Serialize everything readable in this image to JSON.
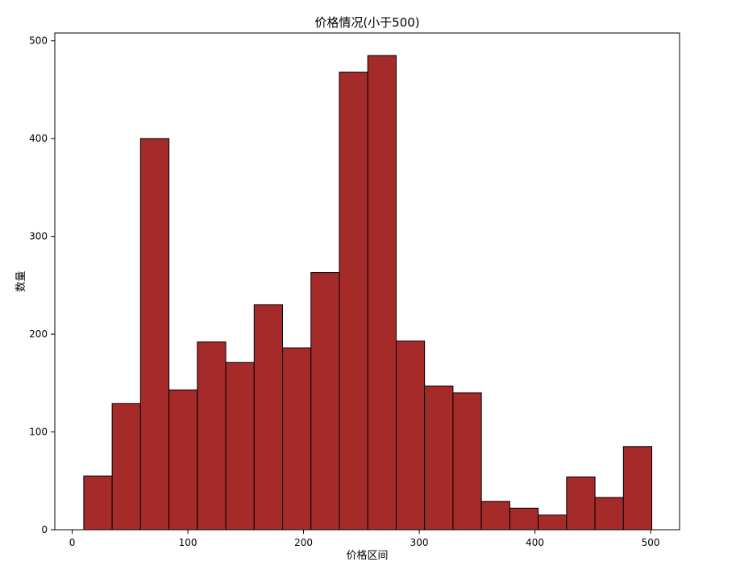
{
  "chart_data": {
    "type": "bar",
    "title": "价格情况(小于500)",
    "xlabel": "价格区间",
    "ylabel": "数量",
    "bin_edges": [
      10.0,
      34.55,
      59.1,
      83.65,
      108.2,
      132.75,
      157.3,
      181.85,
      206.4,
      230.95,
      255.5,
      280.05,
      304.6,
      329.15,
      353.7,
      378.25,
      402.8,
      427.35,
      451.9,
      476.45,
      501.0
    ],
    "values": [
      55,
      129,
      400,
      143,
      192,
      171,
      230,
      186,
      263,
      468,
      485,
      193,
      147,
      140,
      29,
      22,
      15,
      54,
      33,
      85
    ],
    "xlim": [
      -15,
      525
    ],
    "ylim": [
      0,
      508
    ],
    "xticks": [
      0,
      100,
      200,
      300,
      400,
      500
    ],
    "yticks": [
      0,
      100,
      200,
      300,
      400,
      500
    ],
    "bar_color": "#a52a2a",
    "edge_color": "#000000",
    "grid": false
  }
}
